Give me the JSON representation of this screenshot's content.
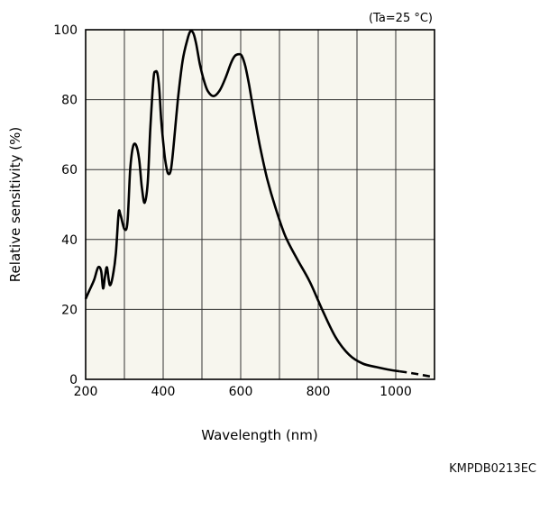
{
  "chart_data": {
    "type": "line",
    "condition_note": "(Ta=25 °C)",
    "xlabel": "Wavelength (nm)",
    "ylabel": "Relative sensitivity (%)",
    "xlim": [
      200,
      1100
    ],
    "ylim": [
      0,
      100
    ],
    "x_ticks": [
      200,
      400,
      600,
      800,
      1000
    ],
    "y_ticks": [
      0,
      20,
      40,
      60,
      80,
      100
    ],
    "grid": true,
    "series": [
      {
        "style": "solid",
        "x": [
          200,
          210,
          222,
          232,
          240,
          245,
          250,
          255,
          262,
          270,
          278,
          285,
          290,
          300,
          308,
          315,
          322,
          330,
          338,
          345,
          352,
          360,
          367,
          375,
          380,
          385,
          390,
          395,
          400,
          405,
          412,
          420,
          428,
          438,
          450,
          462,
          470,
          478,
          485,
          495,
          505,
          515,
          530,
          545,
          560,
          575,
          585,
          595,
          603,
          612,
          622,
          635,
          650,
          668,
          690,
          715,
          745,
          778,
          810,
          845,
          880,
          915,
          950,
          980,
          1010
        ],
        "y": [
          23,
          25.5,
          28.5,
          32,
          31,
          26,
          29.5,
          32,
          27,
          29.5,
          36,
          47.5,
          47,
          43,
          45,
          60,
          66.5,
          67,
          63,
          55,
          50.5,
          56,
          72,
          86,
          88,
          87.5,
          83,
          74,
          68,
          63,
          59,
          60,
          68,
          80,
          91,
          97,
          99.5,
          99,
          96,
          90,
          85.5,
          82.5,
          81,
          82.5,
          86,
          90.5,
          92.5,
          93,
          92.5,
          89.5,
          84,
          75.5,
          66.5,
          57.5,
          49,
          41,
          34.5,
          28,
          20,
          12,
          7,
          4.5,
          3.5,
          2.8,
          2.3
        ]
      },
      {
        "style": "dashed",
        "x": [
          1010,
          1040,
          1070,
          1100
        ],
        "y": [
          2.3,
          1.8,
          1.2,
          0.6
        ]
      }
    ]
  },
  "footer": {
    "document_code": "KMPDB0213EC"
  }
}
